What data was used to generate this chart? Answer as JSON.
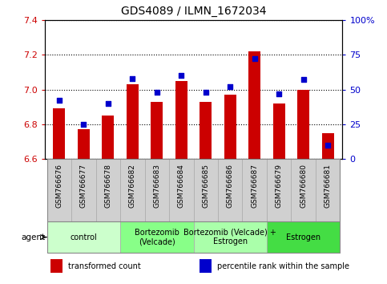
{
  "title": "GDS4089 / ILMN_1672034",
  "samples": [
    "GSM766676",
    "GSM766677",
    "GSM766678",
    "GSM766682",
    "GSM766683",
    "GSM766684",
    "GSM766685",
    "GSM766686",
    "GSM766687",
    "GSM766679",
    "GSM766680",
    "GSM766681"
  ],
  "transformed_counts": [
    6.89,
    6.77,
    6.85,
    7.03,
    6.93,
    7.05,
    6.93,
    6.97,
    7.22,
    6.92,
    7.0,
    6.75
  ],
  "percentile_ranks": [
    42,
    25,
    40,
    58,
    48,
    60,
    48,
    52,
    72,
    47,
    57,
    10
  ],
  "ylim_left": [
    6.6,
    7.4
  ],
  "ylim_right": [
    0,
    100
  ],
  "bar_color": "#cc0000",
  "dot_color": "#0000cc",
  "left_tick_color": "#cc0000",
  "right_tick_color": "#0000cc",
  "grid_color": "#000000",
  "yticks_left": [
    6.6,
    6.8,
    7.0,
    7.2,
    7.4
  ],
  "yticks_right": [
    0,
    25,
    50,
    75,
    100
  ],
  "ytick_labels_right": [
    "0",
    "25",
    "50",
    "75",
    "100%"
  ],
  "agent_groups": [
    {
      "label": "control",
      "start": 0,
      "end": 3,
      "color": "#ccffcc"
    },
    {
      "label": "Bortezomib\n(Velcade)",
      "start": 3,
      "end": 6,
      "color": "#88ff88"
    },
    {
      "label": "Bortezomib (Velcade) +\nEstrogen",
      "start": 6,
      "end": 9,
      "color": "#aaffaa"
    },
    {
      "label": "Estrogen",
      "start": 9,
      "end": 12,
      "color": "#44dd44"
    }
  ],
  "legend_items": [
    {
      "color": "#cc0000",
      "label": "transformed count"
    },
    {
      "color": "#0000cc",
      "label": "percentile rank within the sample"
    }
  ],
  "xlabel_agent": "agent",
  "background_color": "#ffffff",
  "plot_bg_color": "#ffffff",
  "bar_bottom": 6.6,
  "dot_size": 18,
  "bar_width": 0.5,
  "cell_bg_color": "#d0d0d0",
  "spine_color": "#000000"
}
